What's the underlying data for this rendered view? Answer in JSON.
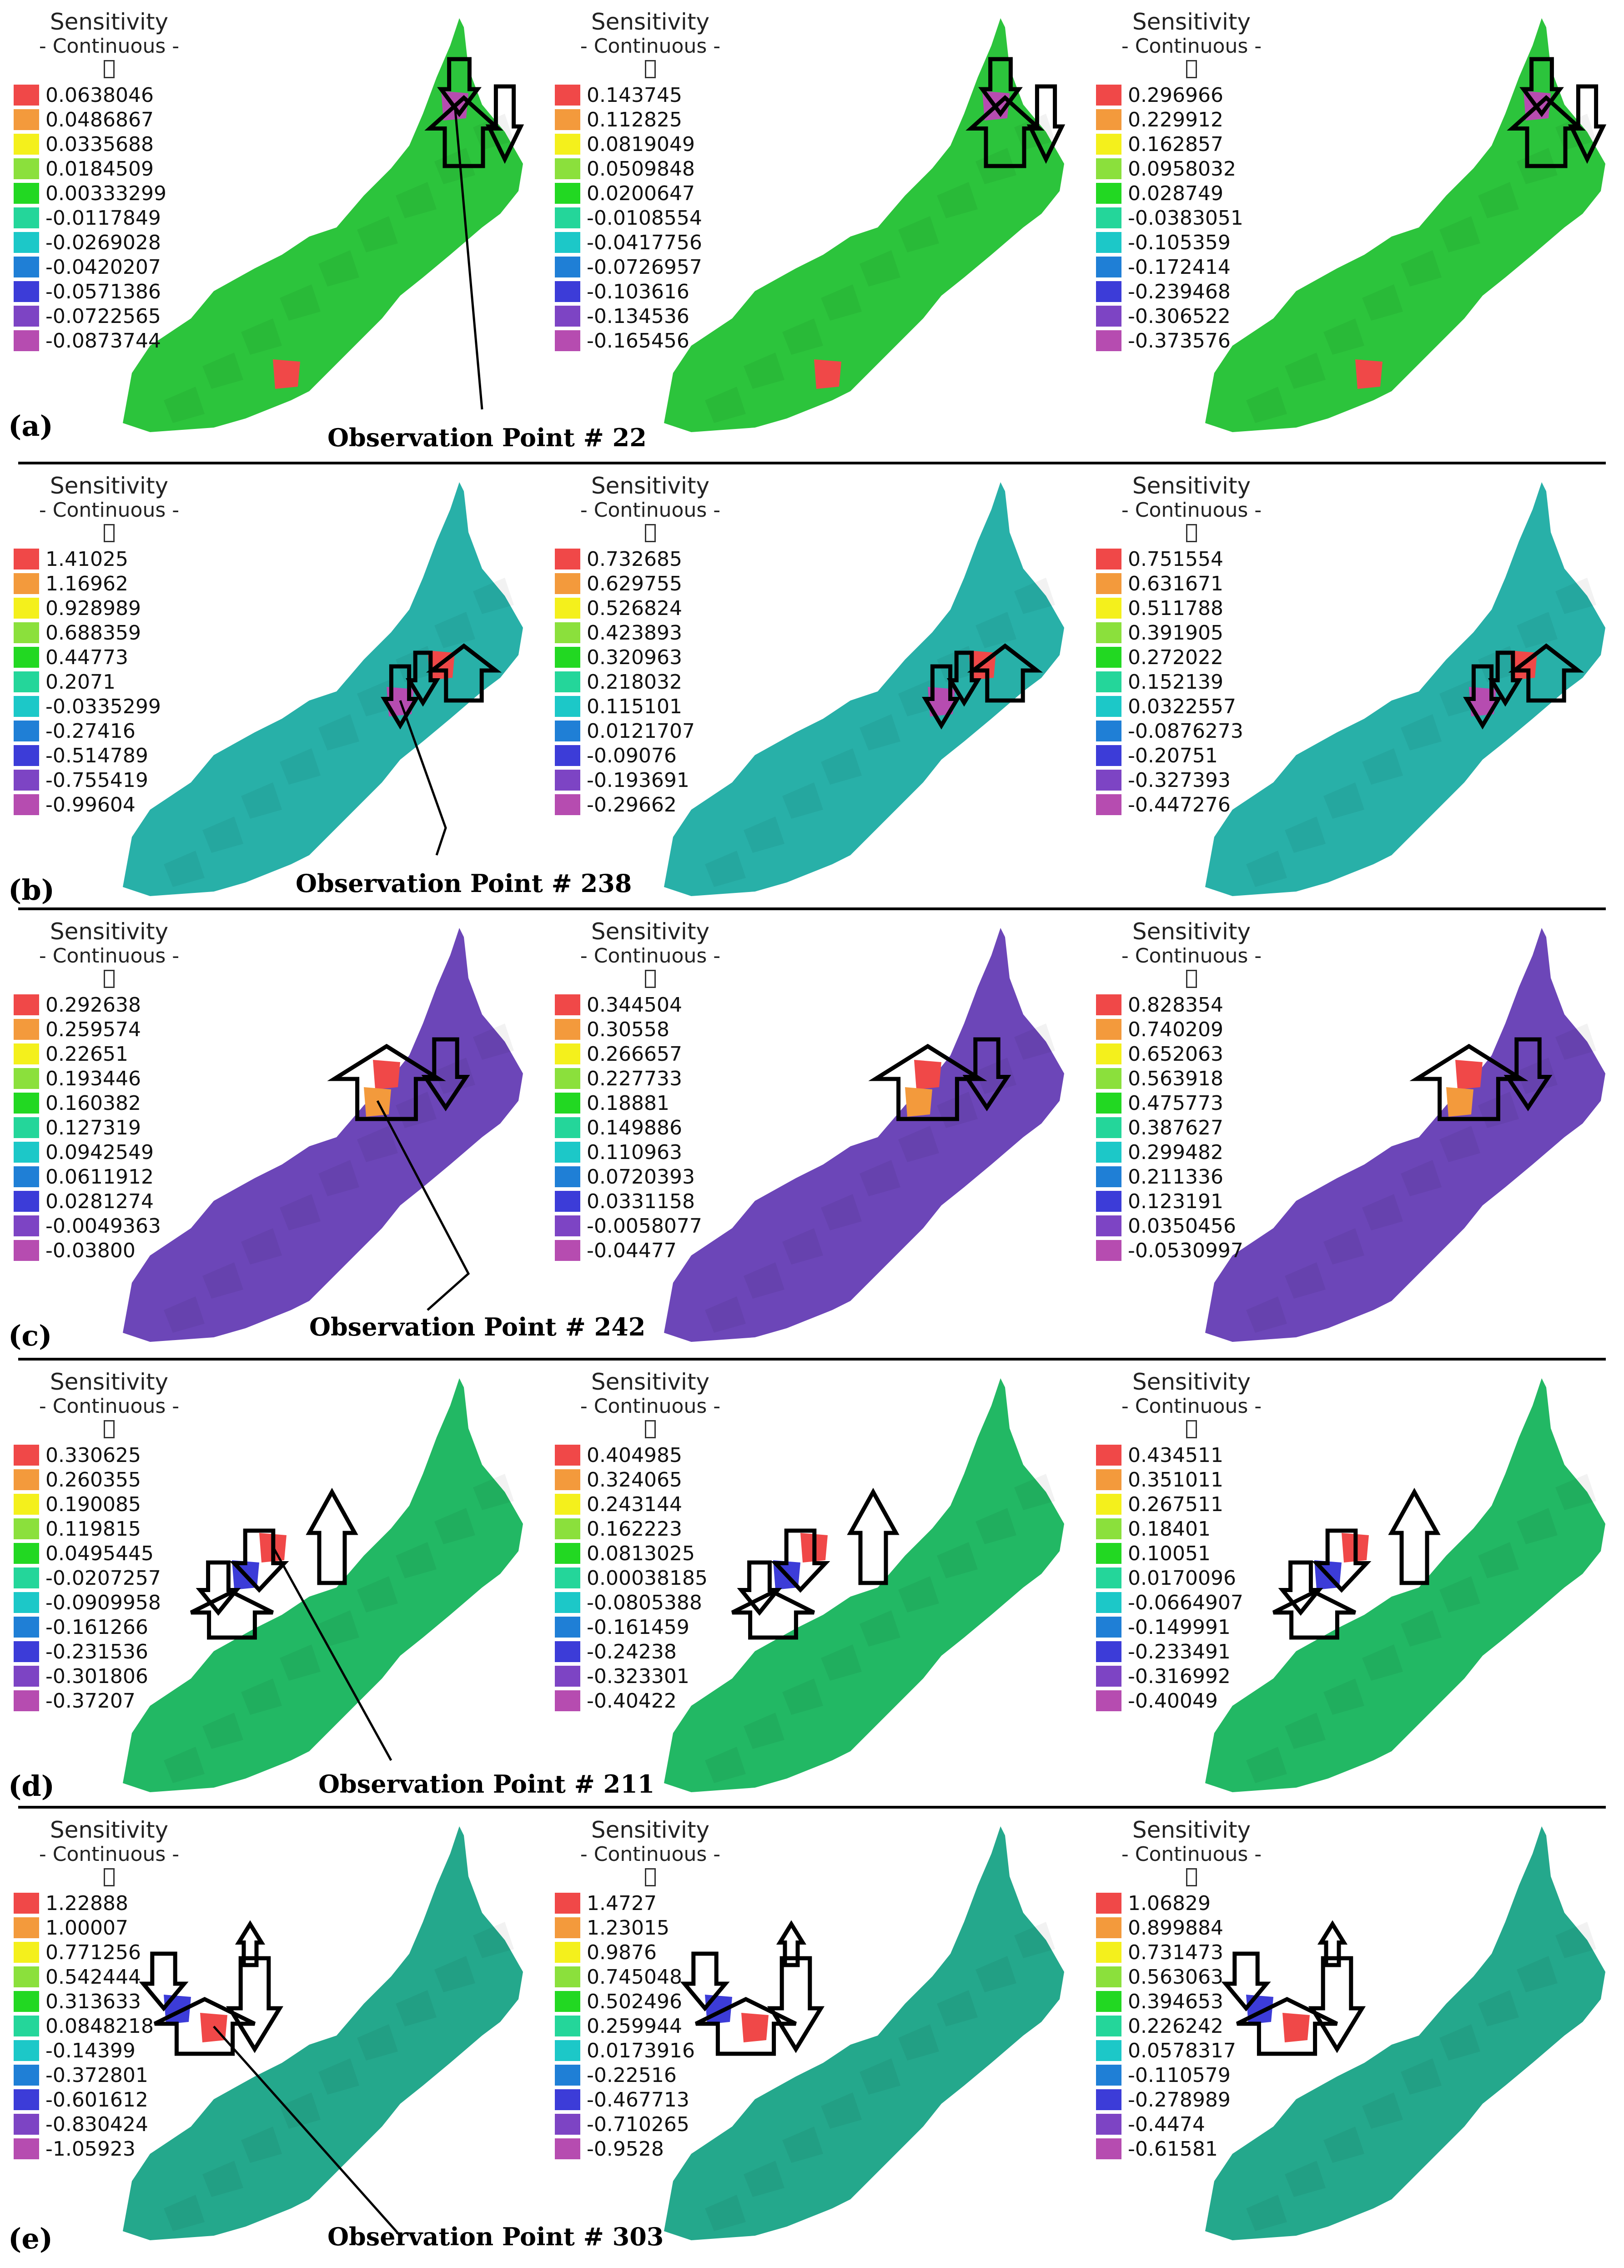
{
  "figure": {
    "legend_title": "Sensitivity",
    "legend_subtitle": "- Continuous -",
    "colors": [
      "#f04848",
      "#f39a3c",
      "#f4f01c",
      "#8be03c",
      "#22d822",
      "#24d69a",
      "#1cc8c8",
      "#1f7fd6",
      "#3c3cd8",
      "#7d44c4",
      "#b64cb0"
    ],
    "rows": [
      {
        "label": "(a)",
        "observation": "Observation Point # 22",
        "map_base": "#2cc43c",
        "panels": [
          {
            "values": [
              "0.0638046",
              "0.0486867",
              "0.0335688",
              "0.0184509",
              "0.00333299",
              "-0.0117849",
              "-0.0269028",
              "-0.0420207",
              "-0.0571386",
              "-0.0722565",
              "-0.0873744"
            ]
          },
          {
            "values": [
              "0.143745",
              "0.112825",
              "0.0819049",
              "0.0509848",
              "0.0200647",
              "-0.0108554",
              "-0.0417756",
              "-0.0726957",
              "-0.103616",
              "-0.134536",
              "-0.165456"
            ]
          },
          {
            "values": [
              "0.296966",
              "0.229912",
              "0.162857",
              "0.0958032",
              "0.028749",
              "-0.0383051",
              "-0.105359",
              "-0.172414",
              "-0.239468",
              "-0.306522",
              "-0.373576"
            ]
          }
        ]
      },
      {
        "label": "(b)",
        "observation": "Observation Point # 238",
        "map_base": "#28b0a8",
        "panels": [
          {
            "values": [
              "1.41025",
              "1.16962",
              "0.928989",
              "0.688359",
              "0.44773",
              "0.2071",
              "-0.0335299",
              "-0.27416",
              "-0.514789",
              "-0.755419",
              "-0.99604"
            ]
          },
          {
            "values": [
              "0.732685",
              "0.629755",
              "0.526824",
              "0.423893",
              "0.320963",
              "0.218032",
              "0.115101",
              "0.0121707",
              "-0.09076",
              "-0.193691",
              "-0.29662"
            ]
          },
          {
            "values": [
              "0.751554",
              "0.631671",
              "0.511788",
              "0.391905",
              "0.272022",
              "0.152139",
              "0.0322557",
              "-0.0876273",
              "-0.20751",
              "-0.327393",
              "-0.447276"
            ]
          }
        ]
      },
      {
        "label": "(c)",
        "observation": "Observation Point # 242",
        "map_base": "#6c46b8",
        "panels": [
          {
            "values": [
              "0.292638",
              "0.259574",
              "0.22651",
              "0.193446",
              "0.160382",
              "0.127319",
              "0.0942549",
              "0.0611912",
              "0.0281274",
              "-0.0049363",
              "-0.03800"
            ]
          },
          {
            "values": [
              "0.344504",
              "0.30558",
              "0.266657",
              "0.227733",
              "0.18881",
              "0.149886",
              "0.110963",
              "0.0720393",
              "0.0331158",
              "-0.0058077",
              "-0.04477"
            ]
          },
          {
            "values": [
              "0.828354",
              "0.740209",
              "0.652063",
              "0.563918",
              "0.475773",
              "0.387627",
              "0.299482",
              "0.211336",
              "0.123191",
              "0.0350456",
              "-0.0530997"
            ]
          }
        ]
      },
      {
        "label": "(d)",
        "observation": "Observation Point # 211",
        "map_base": "#22b864",
        "panels": [
          {
            "values": [
              "0.330625",
              "0.260355",
              "0.190085",
              "0.119815",
              "0.0495445",
              "-0.0207257",
              "-0.0909958",
              "-0.161266",
              "-0.231536",
              "-0.301806",
              "-0.37207"
            ]
          },
          {
            "values": [
              "0.404985",
              "0.324065",
              "0.243144",
              "0.162223",
              "0.0813025",
              "0.00038185",
              "-0.0805388",
              "-0.161459",
              "-0.24238",
              "-0.323301",
              "-0.40422"
            ]
          },
          {
            "values": [
              "0.434511",
              "0.351011",
              "0.267511",
              "0.18401",
              "0.10051",
              "0.0170096",
              "-0.0664907",
              "-0.149991",
              "-0.233491",
              "-0.316992",
              "-0.40049"
            ]
          }
        ]
      },
      {
        "label": "(e)",
        "observation": "Observation Point # 303",
        "map_base": "#24a88c",
        "panels": [
          {
            "values": [
              "1.22888",
              "1.00007",
              "0.771256",
              "0.542444",
              "0.313633",
              "0.0848218",
              "-0.14399",
              "-0.372801",
              "-0.601612",
              "-0.830424",
              "-1.05923"
            ]
          },
          {
            "values": [
              "1.4727",
              "1.23015",
              "0.9876",
              "0.745048",
              "0.502496",
              "0.259944",
              "0.0173916",
              "-0.22516",
              "-0.467713",
              "-0.710265",
              "-0.9528"
            ]
          },
          {
            "values": [
              "1.06829",
              "0.899884",
              "0.731473",
              "0.563063",
              "0.394653",
              "0.226242",
              "0.0578317",
              "-0.110579",
              "-0.278989",
              "-0.4474",
              "-0.61581"
            ]
          }
        ]
      }
    ]
  }
}
